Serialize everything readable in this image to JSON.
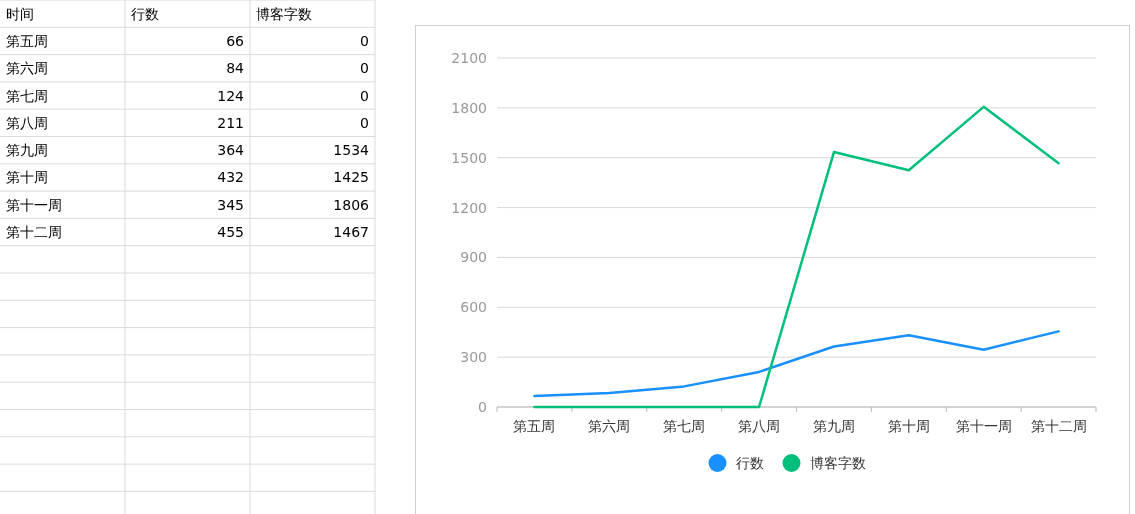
{
  "chart_data": [
    {
      "type": "other",
      "xlabel": "时间",
      "data_labels": true,
      "categories": [
        "第五周",
        "第六周",
        "第七周",
        "第八周",
        "第九周",
        "第十周",
        "第十一周",
        "第十二周"
      ],
      "series": [
        {
          "name": "行数",
          "values": [
            66,
            84,
            124,
            211,
            364,
            432,
            345,
            455
          ]
        },
        {
          "name": "博客字数",
          "values": [
            0,
            0,
            0,
            0,
            1534,
            1425,
            1806,
            1467
          ]
        }
      ]
    },
    {
      "type": "line",
      "categories": [
        "第五周",
        "第六周",
        "第七周",
        "第八周",
        "第九周",
        "第十周",
        "第十一周",
        "第十二周"
      ],
      "series": [
        {
          "name": "行数",
          "color": "#1890ff",
          "values": [
            66,
            84,
            124,
            211,
            364,
            432,
            345,
            455
          ]
        },
        {
          "name": "博客字数",
          "color": "#00bf7a",
          "values": [
            0,
            0,
            0,
            0,
            1534,
            1425,
            1806,
            1467
          ]
        }
      ],
      "ylim": [
        0,
        2100
      ],
      "yticks": [
        0,
        300,
        600,
        900,
        1200,
        1500,
        1800,
        2100
      ],
      "grid": "y",
      "legend": "bottom"
    }
  ]
}
